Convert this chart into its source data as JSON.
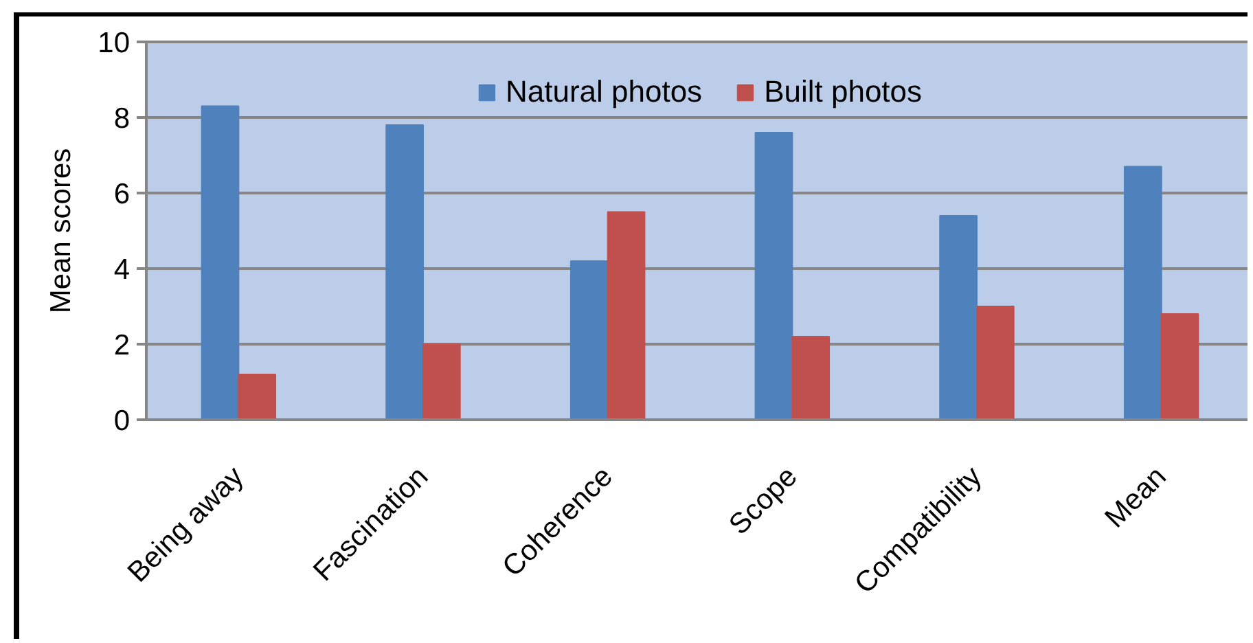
{
  "chart_data": {
    "type": "bar",
    "categories": [
      "Being away",
      "Fascination",
      "Coherence",
      "Scope",
      "Compatibility",
      "Mean"
    ],
    "series": [
      {
        "name": "Natural photos",
        "color": "#4f81bd",
        "values": [
          8.3,
          7.8,
          4.2,
          7.6,
          5.4,
          6.7
        ]
      },
      {
        "name": "Built photos",
        "color": "#c0504d",
        "values": [
          1.2,
          2.0,
          5.5,
          2.2,
          3.0,
          2.8
        ]
      }
    ],
    "ylabel": "Mean scores",
    "ylim": [
      0,
      10
    ],
    "yticks": [
      0,
      2,
      4,
      6,
      8,
      10
    ],
    "grid": "y",
    "legend": "top"
  }
}
